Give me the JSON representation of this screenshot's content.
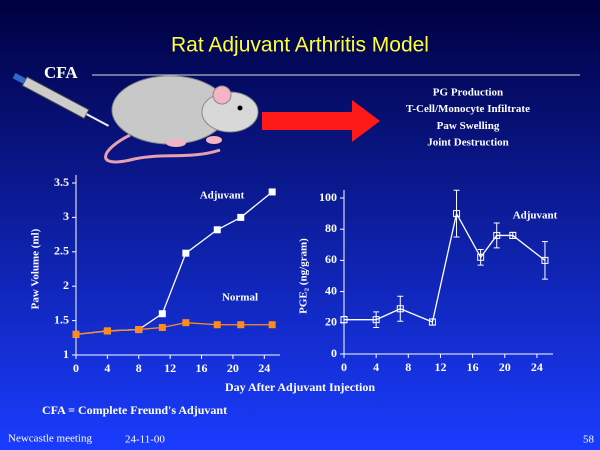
{
  "title": "Rat Adjuvant Arthritis Model",
  "cfa_label": "CFA",
  "outcomes": [
    "PG Production",
    "T-Cell/Monocyte Infiltrate",
    "Paw Swelling",
    "Joint Destruction"
  ],
  "chart_data": [
    {
      "type": "line",
      "ylabel": "Paw Volume (ml)",
      "xlim": [
        0,
        26
      ],
      "xticks": [
        0,
        4,
        8,
        12,
        16,
        20,
        24
      ],
      "ylim": [
        1,
        3.5
      ],
      "yticks": [
        1,
        1.5,
        2,
        2.5,
        3,
        3.5
      ],
      "series": [
        {
          "name": "Adjuvant",
          "color": "#ffffff",
          "x": [
            0,
            4,
            8,
            11,
            14,
            18,
            21,
            25
          ],
          "values": [
            1.3,
            1.35,
            1.37,
            1.6,
            2.48,
            2.82,
            3.0,
            3.37
          ]
        },
        {
          "name": "Normal",
          "color": "#ff8c1a",
          "x": [
            0,
            4,
            8,
            11,
            14,
            18,
            21,
            25
          ],
          "values": [
            1.3,
            1.35,
            1.37,
            1.4,
            1.47,
            1.44,
            1.44,
            1.44
          ]
        }
      ]
    },
    {
      "type": "line",
      "ylabel": "PGE₂ (ng/gram)",
      "xlim": [
        0,
        26
      ],
      "xticks": [
        0,
        4,
        8,
        12,
        16,
        20,
        24
      ],
      "ylim": [
        0,
        100
      ],
      "yticks": [
        0,
        20,
        40,
        60,
        80,
        100
      ],
      "series": [
        {
          "name": "Adjuvant",
          "color": "#ffffff",
          "x": [
            0,
            4,
            7,
            11,
            14,
            17,
            19,
            21,
            25
          ],
          "values": [
            22,
            22,
            29,
            20.5,
            90,
            62,
            76,
            76,
            60
          ],
          "errors": [
            2,
            5,
            8,
            2,
            15,
            5,
            8,
            2,
            12
          ]
        }
      ]
    }
  ],
  "shared_x_label": "Day After Adjuvant Injection",
  "footnote": "CFA = Complete Freund's Adjuvant",
  "footer": {
    "left": "Newcastle meeting",
    "date": "24-11-00",
    "page": "58"
  }
}
